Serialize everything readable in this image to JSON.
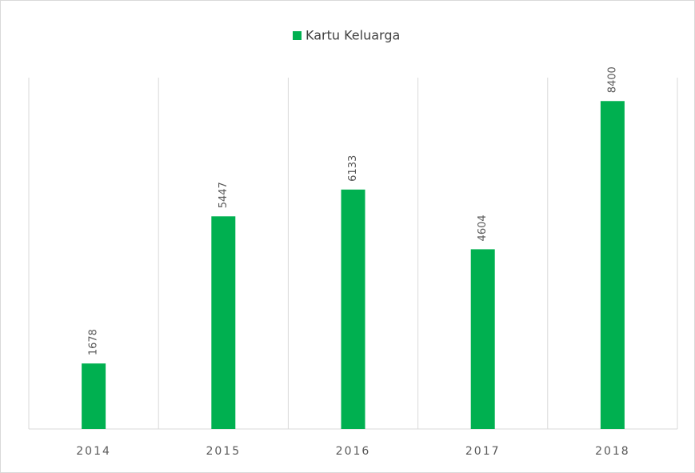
{
  "chart_data": {
    "type": "bar",
    "categories": [
      "2014",
      "2015",
      "2016",
      "2017",
      "2018"
    ],
    "series": [
      {
        "name": "Kartu Keluarga",
        "color": "#00b050",
        "values": [
          1678,
          5447,
          6133,
          4604,
          8400
        ]
      }
    ],
    "ylim": [
      0,
      9000
    ],
    "legend": "top"
  }
}
